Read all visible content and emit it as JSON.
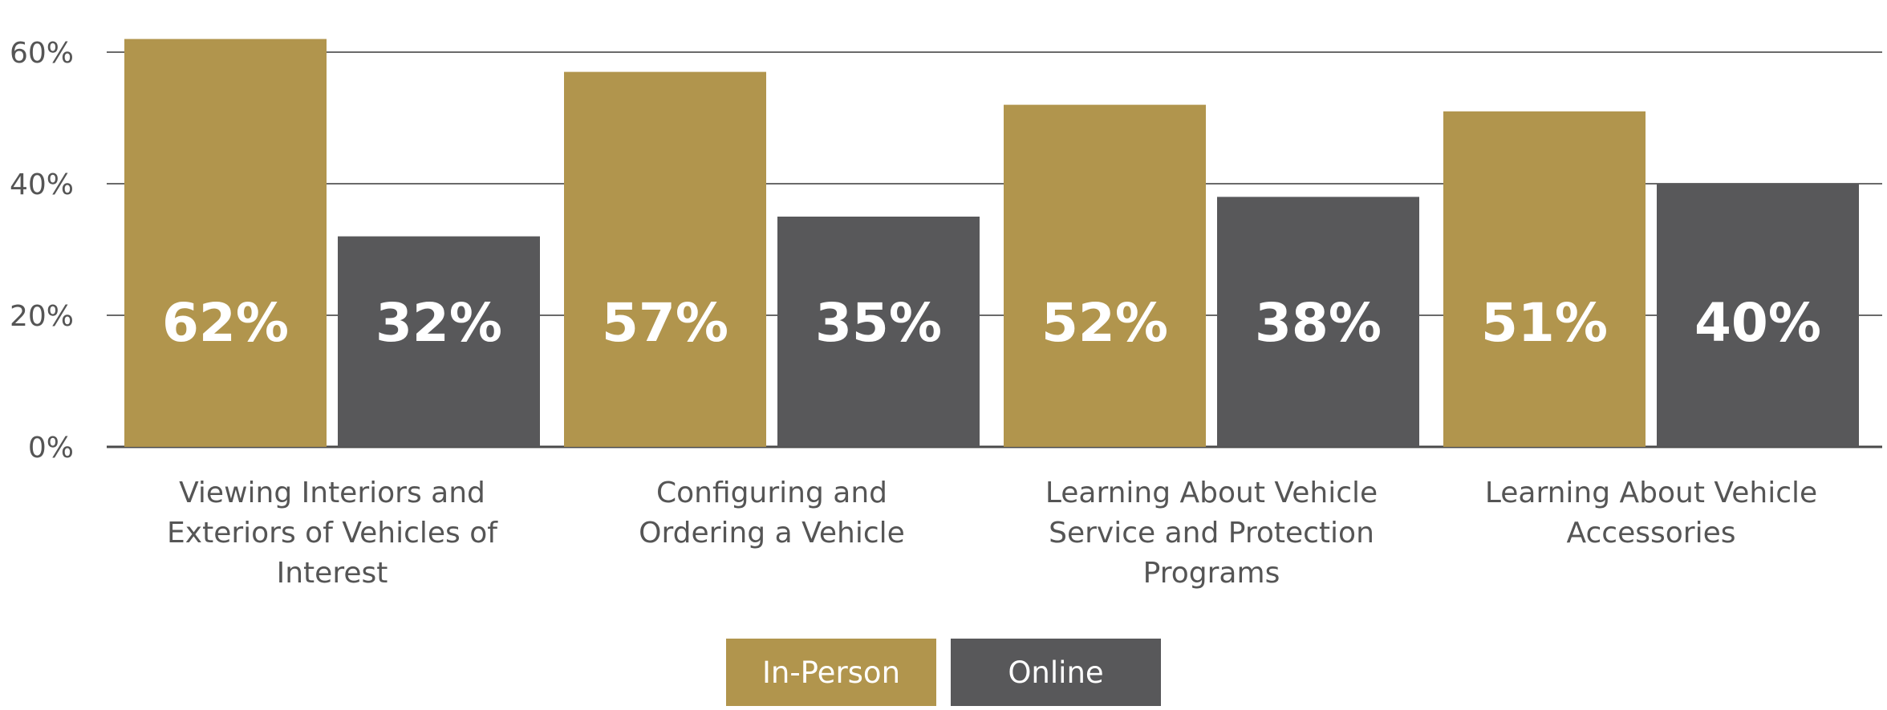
{
  "chart_data": {
    "type": "bar",
    "categories": [
      [
        "Viewing Interiors and",
        "Exteriors of Vehicles of",
        "Interest"
      ],
      [
        "Configuring and",
        "Ordering a Vehicle"
      ],
      [
        "Learning About Vehicle",
        "Service and Protection",
        "Programs"
      ],
      [
        "Learning About Vehicle",
        "Accessories"
      ]
    ],
    "series": [
      {
        "name": "In-Person",
        "values": [
          62,
          57,
          52,
          51
        ],
        "labels": [
          "62%",
          "57%",
          "52%",
          "51%"
        ],
        "color": "#b1954d"
      },
      {
        "name": "Online",
        "values": [
          32,
          35,
          38,
          40
        ],
        "labels": [
          "32%",
          "35%",
          "38%",
          "40%"
        ],
        "color": "#58585a"
      }
    ],
    "y_ticks": [
      "0%",
      "20%",
      "40%",
      "60%"
    ],
    "y_tick_values": [
      0,
      20,
      40,
      60
    ],
    "ylim": [
      0,
      60
    ],
    "grid": true,
    "legend_position": "bottom-center",
    "title": "",
    "xlabel": "",
    "ylabel": ""
  }
}
